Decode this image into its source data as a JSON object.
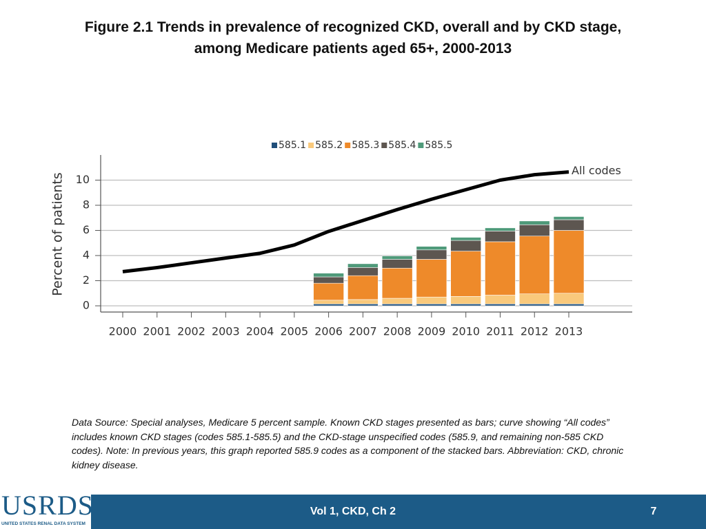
{
  "header": {
    "title": "Figure 2.1 Trends in prevalence of recognized CKD, overall and by CKD stage, among Medicare patients aged 65+, 2000-2013"
  },
  "chart_data": {
    "type": "bar",
    "stacked": true,
    "categories": [
      "2000",
      "2001",
      "2002",
      "2003",
      "2004",
      "2005",
      "2006",
      "2007",
      "2008",
      "2009",
      "2010",
      "2011",
      "2012",
      "2013"
    ],
    "ylabel": "Percent of patients",
    "ylim": [
      0,
      12
    ],
    "yticks": [
      0,
      2,
      4,
      6,
      8,
      10
    ],
    "grid": true,
    "legend": "top",
    "series": [
      {
        "name": "585.1",
        "color": "#1f4e79",
        "values": [
          null,
          null,
          null,
          null,
          null,
          null,
          0.15,
          0.15,
          0.15,
          0.15,
          0.15,
          0.15,
          0.15,
          0.15
        ]
      },
      {
        "name": "585.2",
        "color": "#f9c97c",
        "values": [
          null,
          null,
          null,
          null,
          null,
          null,
          0.3,
          0.35,
          0.45,
          0.55,
          0.6,
          0.7,
          0.8,
          0.85
        ]
      },
      {
        "name": "585.3",
        "color": "#ee8a2a",
        "values": [
          null,
          null,
          null,
          null,
          null,
          null,
          1.35,
          1.9,
          2.4,
          3.0,
          3.6,
          4.25,
          4.6,
          5.0
        ]
      },
      {
        "name": "585.4",
        "color": "#5d5650",
        "values": [
          null,
          null,
          null,
          null,
          null,
          null,
          0.5,
          0.65,
          0.7,
          0.75,
          0.85,
          0.85,
          0.9,
          0.85
        ]
      },
      {
        "name": "585.5",
        "color": "#4f9a7a",
        "values": [
          null,
          null,
          null,
          null,
          null,
          null,
          0.3,
          0.3,
          0.27,
          0.28,
          0.25,
          0.25,
          0.3,
          0.25
        ]
      }
    ],
    "line": {
      "name": "All codes",
      "color": "#000000",
      "values": [
        2.72,
        3.04,
        3.42,
        3.8,
        4.18,
        4.84,
        5.92,
        6.79,
        7.66,
        8.48,
        9.24,
        10.0,
        10.43,
        10.65
      ]
    }
  },
  "note": "Data Source: Special analyses, Medicare 5 percent sample. Known CKD stages presented as bars; curve showing “All codes” includes known CKD stages (codes 585.1-585.5) and the CKD-stage unspecified codes (585.9, and remaining non-585 CKD codes). Note: In previous years, this graph reported 585.9 codes as a component of the stacked bars. Abbreviation: CKD, chronic kidney disease.",
  "footer": {
    "logo": "USRDS",
    "logo_subtitle": "UNITED STATES RENAL DATA SYSTEM",
    "label": "Vol 1, CKD, Ch 2",
    "page": "7"
  }
}
